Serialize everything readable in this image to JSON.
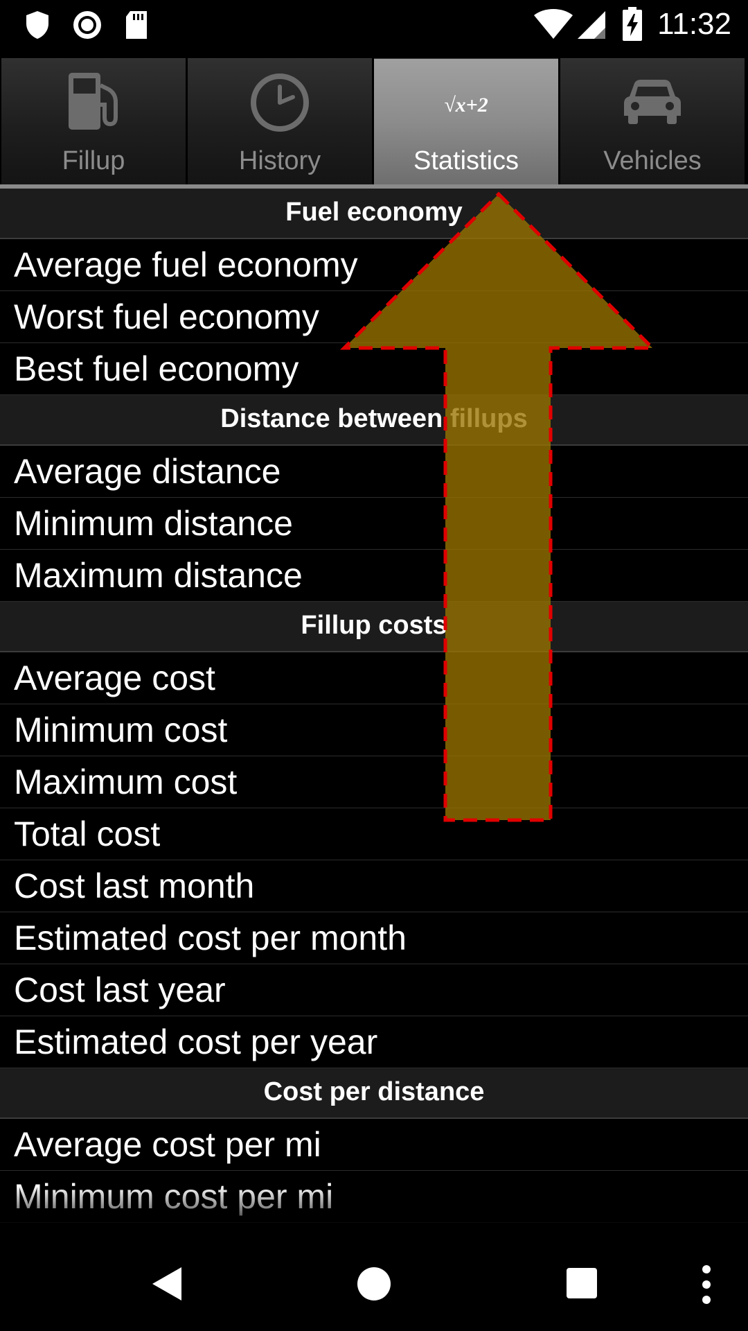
{
  "status_bar": {
    "time": "11:32",
    "left_icons": [
      "shield-icon",
      "record-icon",
      "sd-card-icon"
    ],
    "right_icons": [
      "wifi-icon",
      "cell-signal-icon",
      "battery-charging-icon"
    ]
  },
  "tabs": [
    {
      "label": "Fillup",
      "icon": "fuel-pump-icon",
      "selected": false
    },
    {
      "label": "History",
      "icon": "clock-icon",
      "selected": false
    },
    {
      "label": "Statistics",
      "icon": "sqrt-formula-icon",
      "selected": true,
      "icon_text": "√x+2"
    },
    {
      "label": "Vehicles",
      "icon": "car-icon",
      "selected": false
    }
  ],
  "sections": [
    {
      "title": "Fuel economy",
      "items": [
        "Average fuel economy",
        "Worst fuel economy",
        "Best fuel economy"
      ]
    },
    {
      "title": "Distance between fillups",
      "items": [
        "Average distance",
        "Minimum distance",
        "Maximum distance"
      ]
    },
    {
      "title": "Fillup costs",
      "items": [
        "Average cost",
        "Minimum cost",
        "Maximum cost",
        "Total cost",
        "Cost last month",
        "Estimated cost per month",
        "Cost last year",
        "Estimated cost per year"
      ]
    },
    {
      "title": "Cost per distance",
      "items": [
        "Average cost per mi",
        "Minimum cost per mi"
      ]
    }
  ],
  "overlay": {
    "icon": "swipe-up-arrow-icon",
    "fill_color": "#9a7400",
    "border_color": "#e00000"
  },
  "nav_bar": {
    "buttons": [
      "back-icon",
      "home-icon",
      "recents-icon",
      "overflow-menu-icon"
    ]
  },
  "colors": {
    "background": "#000000",
    "section_header_bg": "#1c1c1c",
    "selected_tab_bg": "#8c8c8c",
    "unselected_tab_text": "#8c8c8c"
  }
}
